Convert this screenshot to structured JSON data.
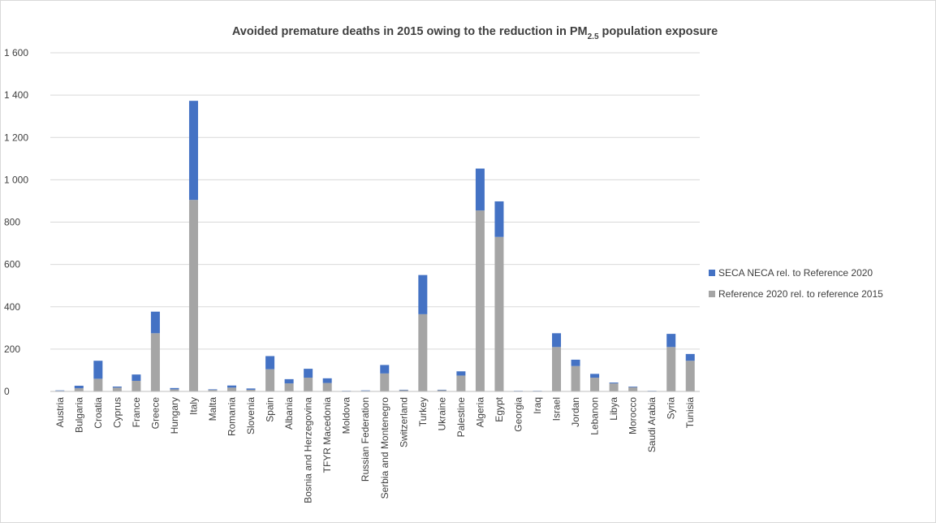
{
  "chart_data": {
    "type": "bar",
    "stacked": true,
    "title": {
      "main": "Avoided premature deaths in 2015 owing to the reduction in PM",
      "sub": "2.5",
      "tail": " population exposure"
    },
    "xlabel": "",
    "ylabel": "",
    "ylim": [
      0,
      1600
    ],
    "yticks": [
      0,
      200,
      400,
      600,
      800,
      1000,
      1200,
      1400,
      1600
    ],
    "ytick_labels": [
      "0",
      "200",
      "400",
      "600",
      "800",
      "1 000",
      "1 200",
      "1 400",
      "1 600"
    ],
    "grid": true,
    "legend_position": "right",
    "categories": [
      "Austria",
      "Bulgaria",
      "Croatia",
      "Cyprus",
      "France",
      "Greece",
      "Hungary",
      "Italy",
      "Malta",
      "Romania",
      "Slovenia",
      "Spain",
      "Albania",
      "Bosnia and Herzegovina",
      "TFYR Macedonia",
      "Moldova",
      "Russian Federation",
      "Serbia and Montenegro",
      "Switzerland",
      "Turkey",
      "Ukraine",
      "Palestine",
      "Algeria",
      "Egypt",
      "Georgia",
      "Iraq",
      "Israel",
      "Jordan",
      "Lebanon",
      "Libya",
      "Morocco",
      "Saudi Arabia",
      "Syria",
      "Tunisia"
    ],
    "series": [
      {
        "name": "Reference 2020 rel. to reference 2015",
        "color": "#a5a5a5",
        "values": [
          3,
          15,
          60,
          18,
          50,
          275,
          10,
          905,
          7,
          18,
          8,
          105,
          38,
          65,
          40,
          2,
          3,
          85,
          6,
          365,
          6,
          75,
          855,
          730,
          2,
          2,
          210,
          120,
          65,
          38,
          20,
          2,
          210,
          145
        ]
      },
      {
        "name": "SECA NECA rel. to Reference 2020",
        "color": "#4472c4",
        "values": [
          2,
          12,
          85,
          5,
          30,
          102,
          6,
          468,
          3,
          10,
          6,
          62,
          20,
          42,
          22,
          1,
          2,
          40,
          2,
          185,
          2,
          20,
          198,
          168,
          1,
          1,
          65,
          30,
          18,
          4,
          3,
          1,
          62,
          32
        ]
      }
    ]
  }
}
